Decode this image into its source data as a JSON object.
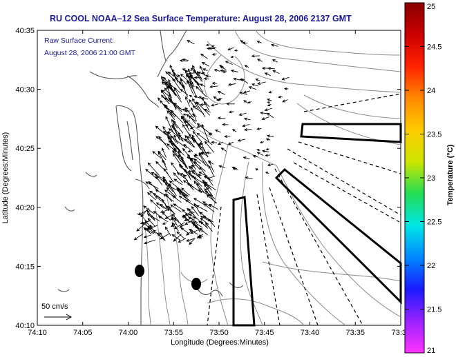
{
  "title": "RU COOL  NOAA–12  Sea Surface Temperature:  August 28, 2006 2137 GMT",
  "legend": {
    "line1": "Raw Surface Current:",
    "line2": "August 28, 2006 21:00 GMT"
  },
  "axes": {
    "xlabel": "Longitude (Degrees:Minutes)",
    "ylabel": "Latitude (Degrees:Minutes)",
    "x_ticks": [
      "74:10",
      "74:05",
      "74:00",
      "73:55",
      "73:50",
      "73:45",
      "73:40",
      "73:35",
      "73:3"
    ],
    "y_ticks": [
      "40:35",
      "40:30",
      "40:25",
      "40:20",
      "40:15",
      "40:10"
    ]
  },
  "colorbar": {
    "label": "Temperature (°C)",
    "ticks": [
      "25",
      "24.5",
      "24",
      "23.5",
      "23",
      "22.5",
      "22",
      "21.5",
      "21"
    ],
    "min": 21,
    "max": 25,
    "colors": [
      "#ff33ff",
      "#9922ff",
      "#1a1aff",
      "#0088ff",
      "#00e6e6",
      "#22dd55",
      "#cce600",
      "#ffcc00",
      "#ff8800",
      "#ff2200",
      "#cc0000",
      "#880000"
    ]
  },
  "scale_bar": {
    "label": "50 cm/s"
  },
  "marks": {
    "land_color": "#ffffff",
    "bathymetry_color": "#888888",
    "coast_color": "#555555",
    "title_color": "#1a1a9c"
  }
}
